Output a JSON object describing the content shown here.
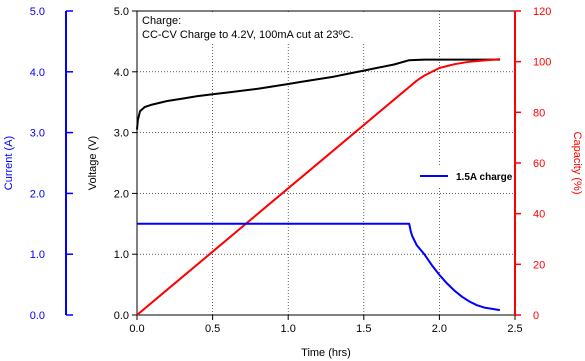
{
  "chart_data": {
    "type": "line",
    "xlabel": "Time (hrs)",
    "xlim": [
      0,
      2.5
    ],
    "x_ticks": [
      "0.0",
      "0.5",
      "1.0",
      "1.5",
      "2.0",
      "2.5"
    ],
    "axes": {
      "current": {
        "label": "Current (A)",
        "lim": [
          0,
          5
        ],
        "ticks": [
          "0.0",
          "1.0",
          "2.0",
          "3.0",
          "4.0",
          "5.0"
        ],
        "color": "#0000ff"
      },
      "voltage": {
        "label": "Voltage (V)",
        "lim": [
          0,
          5
        ],
        "ticks": [
          "0.0",
          "1.0",
          "2.0",
          "3.0",
          "4.0",
          "5.0"
        ],
        "color": "#000000"
      },
      "capacity": {
        "label": "Capacity (%)",
        "lim": [
          0,
          120
        ],
        "ticks": [
          "0",
          "20",
          "40",
          "60",
          "80",
          "100",
          "120"
        ],
        "color": "#ff0000"
      }
    },
    "grid": true,
    "annotation": {
      "line1": "Charge:",
      "line2": "CC-CV Charge to 4.2V, 100mA cut at 23ºC."
    },
    "legend": {
      "position": "right",
      "entries": [
        "1.5A charge"
      ]
    },
    "series": [
      {
        "axis": "voltage",
        "color": "#000000",
        "x": [
          0,
          0.005,
          0.02,
          0.05,
          0.1,
          0.2,
          0.3,
          0.4,
          0.5,
          0.6,
          0.7,
          0.8,
          0.9,
          1.0,
          1.1,
          1.2,
          1.3,
          1.4,
          1.5,
          1.6,
          1.7,
          1.8,
          1.9,
          2.0,
          2.1,
          2.2,
          2.4
        ],
        "values": [
          3.05,
          3.2,
          3.35,
          3.42,
          3.46,
          3.52,
          3.56,
          3.6,
          3.63,
          3.66,
          3.69,
          3.72,
          3.76,
          3.8,
          3.84,
          3.88,
          3.92,
          3.97,
          4.02,
          4.07,
          4.12,
          4.19,
          4.2,
          4.2,
          4.2,
          4.2,
          4.2
        ]
      },
      {
        "axis": "capacity",
        "color": "#ff0000",
        "x": [
          0,
          0.25,
          0.5,
          0.75,
          1.0,
          1.25,
          1.5,
          1.75,
          1.8,
          1.85,
          1.9,
          2.0,
          2.1,
          2.2,
          2.3,
          2.4
        ],
        "values": [
          0,
          12.5,
          25,
          37.5,
          50,
          62.5,
          75,
          87.5,
          90,
          92.5,
          94.5,
          97.5,
          99,
          100,
          100.5,
          101
        ]
      },
      {
        "name": "1.5A charge",
        "axis": "current",
        "color": "#0000ff",
        "x": [
          0,
          1.8,
          1.81,
          1.82,
          1.85,
          1.9,
          1.95,
          2.0,
          2.05,
          2.1,
          2.15,
          2.2,
          2.25,
          2.3,
          2.35,
          2.4
        ],
        "values": [
          1.5,
          1.5,
          1.38,
          1.3,
          1.15,
          1.0,
          0.82,
          0.66,
          0.52,
          0.4,
          0.3,
          0.22,
          0.16,
          0.12,
          0.1,
          0.08
        ]
      }
    ]
  }
}
